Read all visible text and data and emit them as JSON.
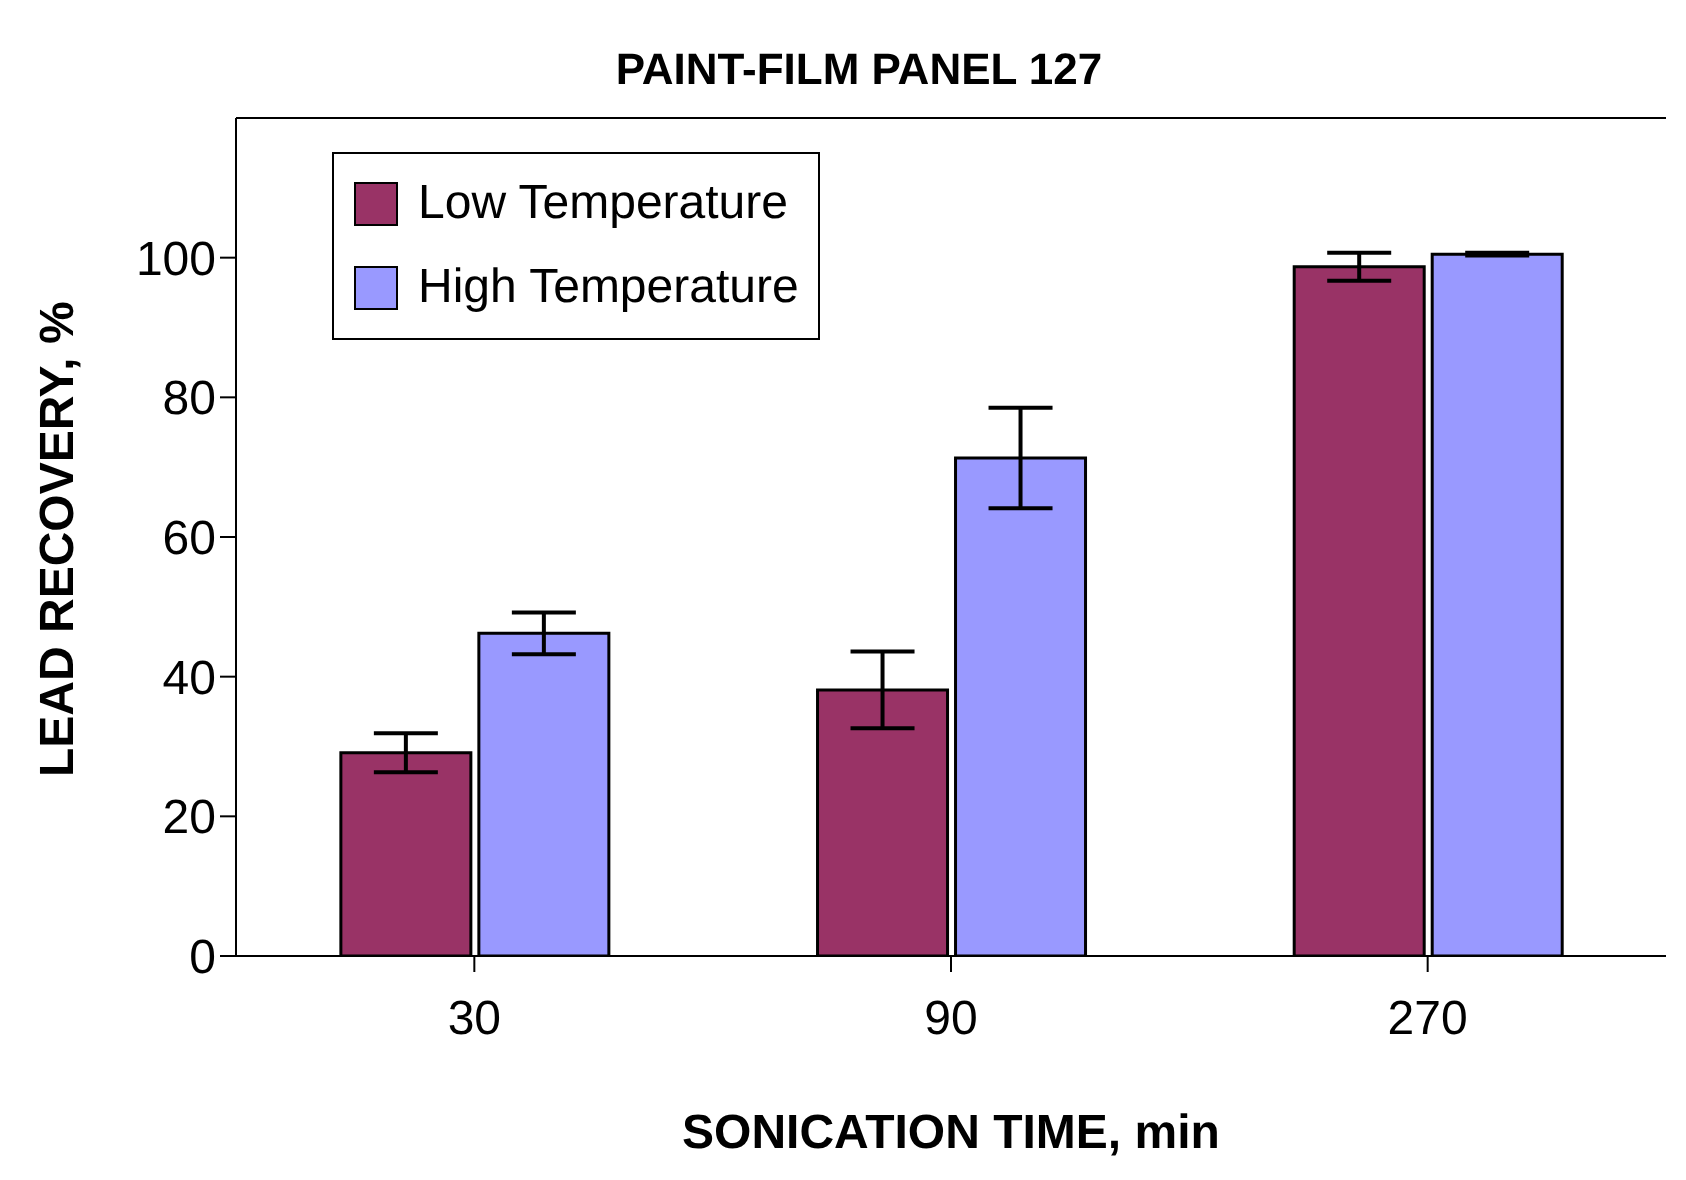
{
  "chart_data": {
    "type": "bar",
    "title": "PAINT-FILM PANEL 127",
    "xlabel": "SONICATION TIME, min",
    "ylabel": "LEAD RECOVERY, %",
    "categories": [
      "30",
      "90",
      "270"
    ],
    "series": [
      {
        "name": "Low Temperature",
        "color": "#993366",
        "values": [
          29.1,
          38.1,
          98.7
        ],
        "errors": [
          2.8,
          5.5,
          2.0
        ]
      },
      {
        "name": "High Temperature",
        "color": "#9999ff",
        "values": [
          46.2,
          71.3,
          100.5
        ],
        "errors": [
          3.0,
          7.2,
          0.2
        ]
      }
    ],
    "ylim": [
      0,
      120
    ],
    "yticks": [
      0,
      20,
      40,
      60,
      80,
      100
    ],
    "grid": false,
    "legend": "top left"
  }
}
